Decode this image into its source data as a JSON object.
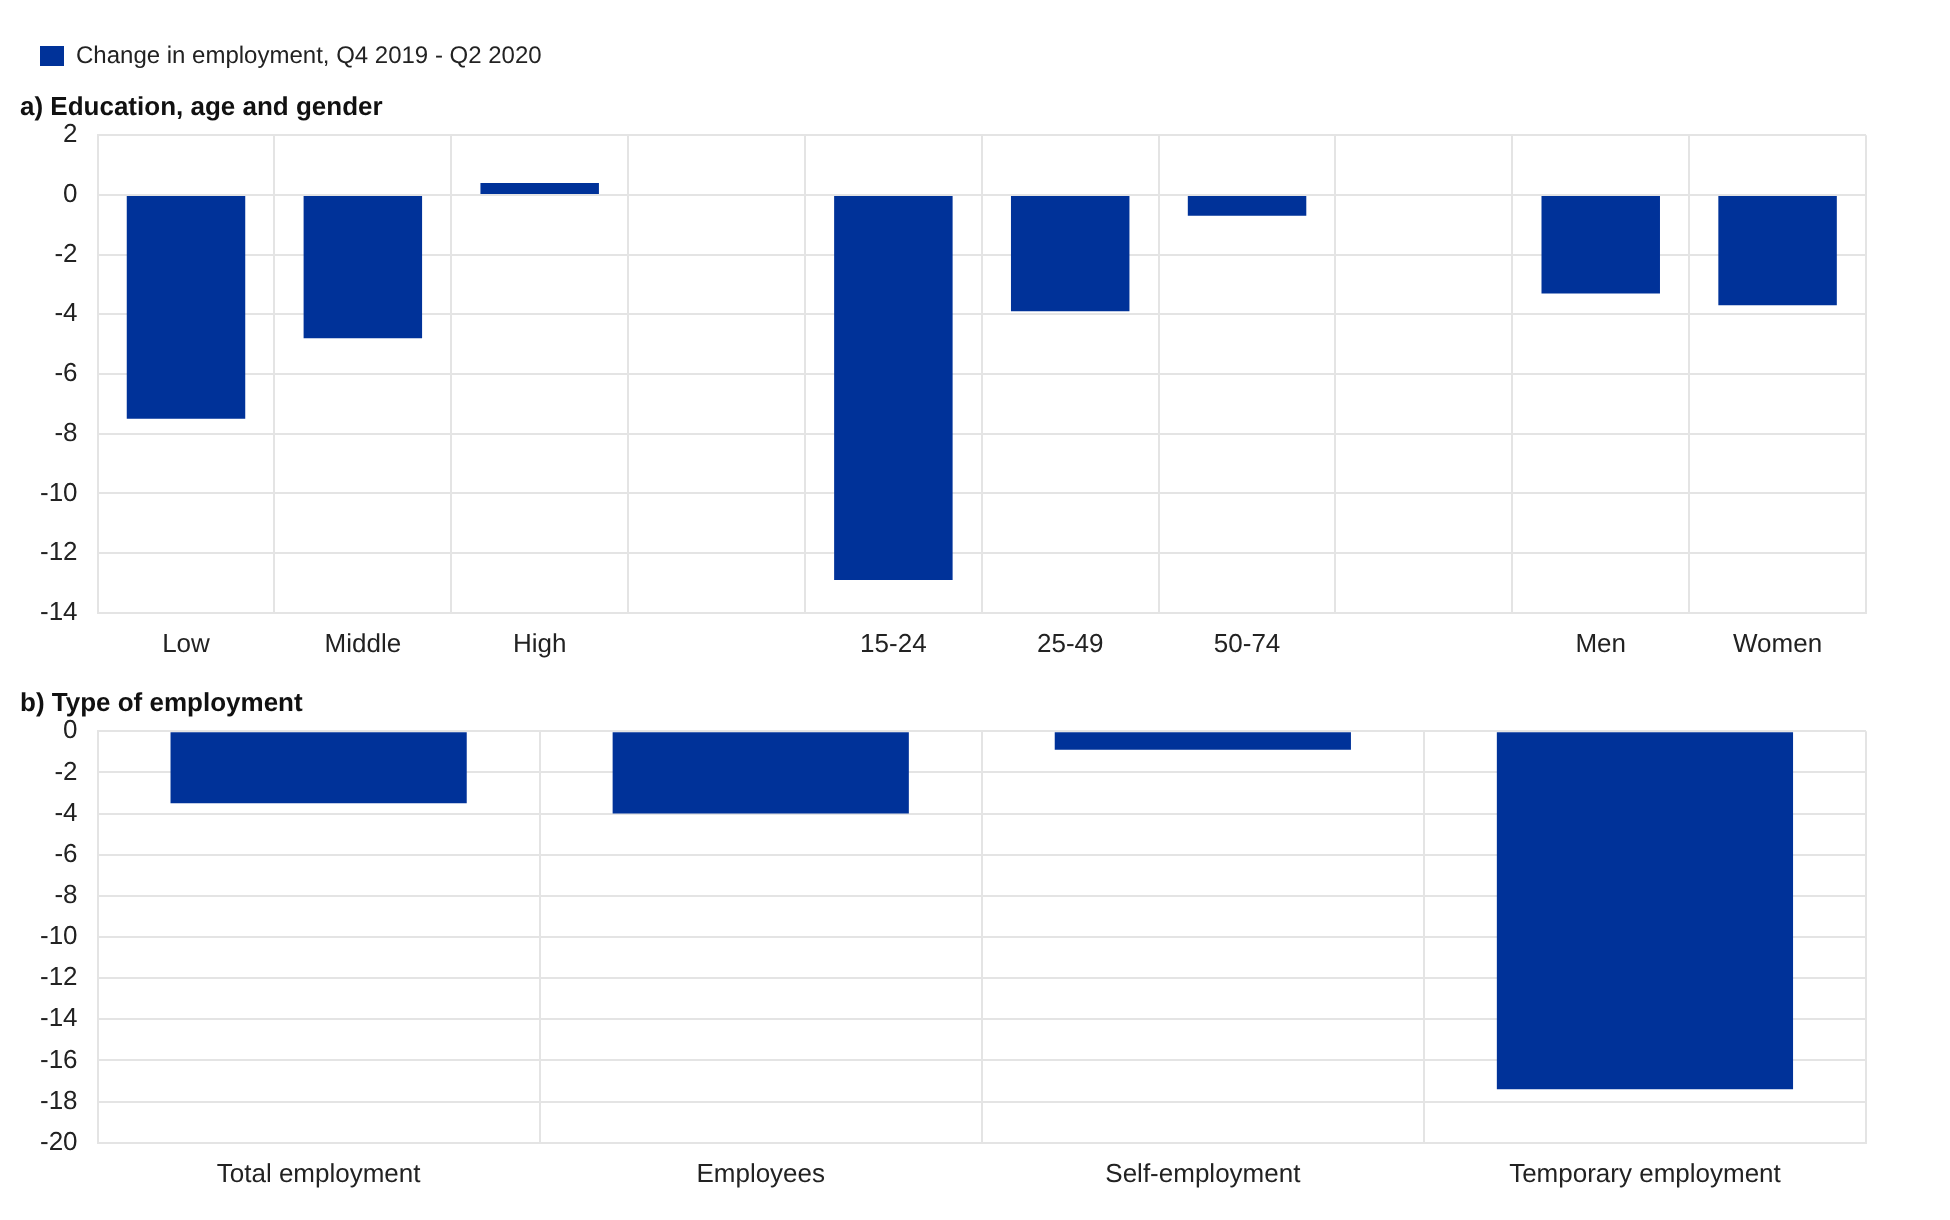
{
  "chart_data": [
    {
      "type": "bar",
      "title": "a) Education, age and gender",
      "categories": [
        "Low",
        "Middle",
        "High",
        null,
        "15-24",
        "25-49",
        "50-74",
        null,
        "Men",
        "Women"
      ],
      "series": [
        {
          "name": "Change in employment, Q4 2019 - Q2 2020",
          "color": "#003299",
          "values": [
            -7.5,
            -4.8,
            0.4,
            null,
            -12.9,
            -3.9,
            -0.7,
            null,
            -3.3,
            -3.7
          ]
        }
      ],
      "ylim": [
        -14,
        2
      ],
      "yticks": [
        -14,
        -12,
        -10,
        -8,
        -6,
        -4,
        -2,
        0,
        2
      ],
      "grid": true,
      "legend": "top left"
    },
    {
      "type": "bar",
      "title": "b) Type of employment",
      "categories": [
        "Total employment",
        "Employees",
        "Self-employment",
        "Temporary employment"
      ],
      "series": [
        {
          "color": "#003299",
          "values": [
            -3.5,
            -4.0,
            -0.9,
            -17.4
          ]
        }
      ],
      "ylim": [
        -20,
        0
      ],
      "yticks": [
        -20,
        -18,
        -16,
        -14,
        -12,
        -10,
        -8,
        -6,
        -4,
        -2,
        0
      ],
      "grid": true
    }
  ]
}
